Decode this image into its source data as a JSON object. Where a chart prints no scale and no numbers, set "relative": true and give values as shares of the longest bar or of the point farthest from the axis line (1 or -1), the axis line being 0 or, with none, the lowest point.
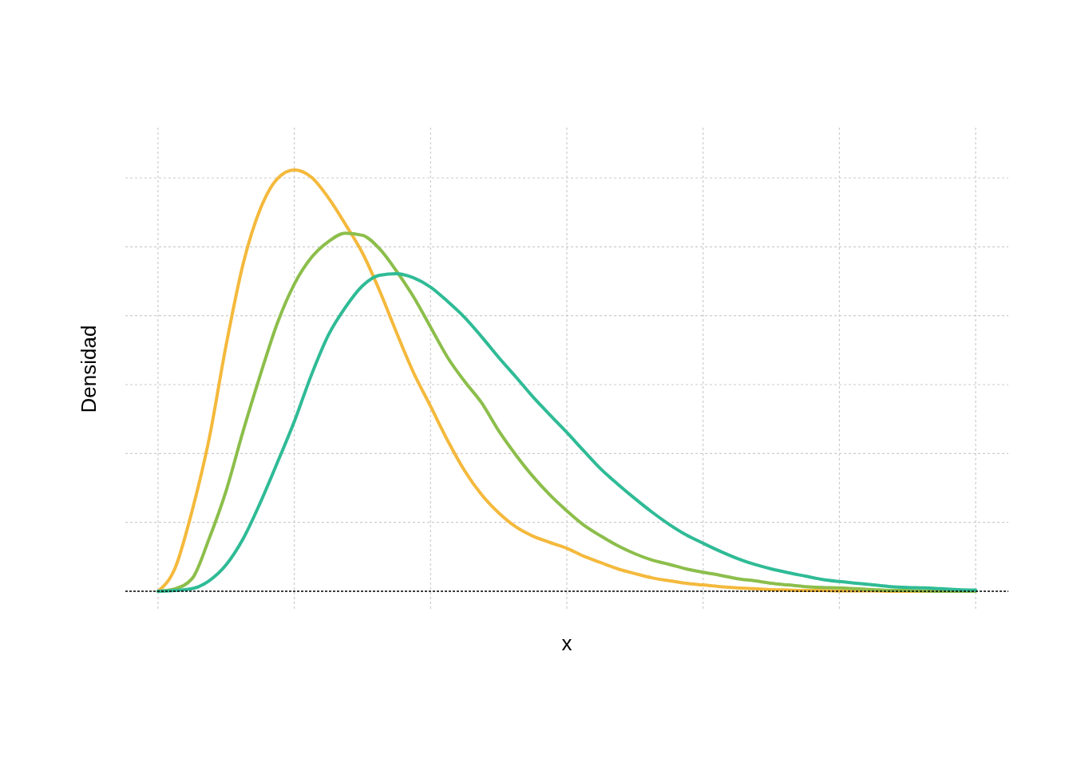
{
  "chart_data": {
    "type": "line",
    "relative": true,
    "xlabel": "x",
    "ylabel": "Densidad",
    "grid": true,
    "marker": "none",
    "line_style": "solid",
    "categories": [
      null,
      null,
      null,
      null,
      null,
      null,
      null,
      null,
      null,
      null,
      null,
      null,
      null,
      null,
      null,
      null,
      null,
      null,
      null,
      null,
      null,
      null,
      null,
      null,
      null,
      null,
      null,
      null,
      null,
      null,
      null,
      null,
      null,
      null,
      null,
      null,
      null,
      null,
      null,
      null,
      null,
      null,
      null,
      null,
      null,
      null,
      null,
      null,
      null
    ],
    "series": [
      {
        "color": "#f4b93c",
        "values": [
          0,
          0.055,
          0.191,
          0.362,
          0.585,
          0.778,
          0.907,
          0.979,
          1,
          0.983,
          0.934,
          0.871,
          0.803,
          0.714,
          0.614,
          0.519,
          0.439,
          0.358,
          0.286,
          0.229,
          0.186,
          0.153,
          0.131,
          0.116,
          0.102,
          0.083,
          0.068,
          0.053,
          0.042,
          0.032,
          0.025,
          0.019,
          0.015,
          0.011,
          0.008,
          0.006,
          0.004,
          0.003,
          0.002,
          0.002,
          0.001,
          0.001,
          0.001,
          0,
          0,
          0,
          0,
          null,
          null
        ]
      },
      {
        "color": "#8cbe4b",
        "values": [
          0,
          0.006,
          0.03,
          0.125,
          0.239,
          0.381,
          0.513,
          0.636,
          0.729,
          0.792,
          0.83,
          0.85,
          0.845,
          0.813,
          0.76,
          0.699,
          0.627,
          0.555,
          0.498,
          0.447,
          0.381,
          0.324,
          0.273,
          0.229,
          0.191,
          0.157,
          0.131,
          0.108,
          0.089,
          0.074,
          0.064,
          0.053,
          0.045,
          0.038,
          0.03,
          0.025,
          0.019,
          0.015,
          0.011,
          0.009,
          0.008,
          0.006,
          0.004,
          0.002,
          0.002,
          0.001,
          0,
          0,
          0
        ]
      },
      {
        "color": "#2fbb96",
        "values": [
          0,
          0.002,
          0.006,
          0.025,
          0.063,
          0.125,
          0.21,
          0.305,
          0.403,
          0.513,
          0.608,
          0.674,
          0.725,
          0.75,
          0.754,
          0.744,
          0.722,
          0.688,
          0.65,
          0.604,
          0.555,
          0.509,
          0.462,
          0.419,
          0.377,
          0.333,
          0.29,
          0.254,
          0.22,
          0.188,
          0.159,
          0.134,
          0.114,
          0.095,
          0.078,
          0.064,
          0.053,
          0.044,
          0.036,
          0.028,
          0.023,
          0.019,
          0.015,
          0.011,
          0.009,
          0.008,
          0.006,
          0.004,
          0.003
        ]
      }
    ]
  }
}
